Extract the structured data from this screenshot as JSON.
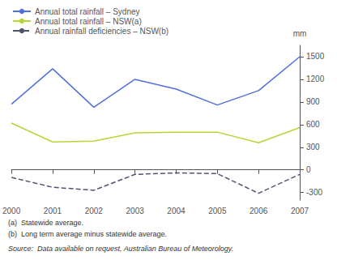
{
  "chart_data": {
    "type": "line",
    "x": [
      2000,
      2001,
      2002,
      2003,
      2004,
      2005,
      2006,
      2007
    ],
    "series": [
      {
        "name": "Annual total rainfall – Sydney",
        "values": [
          870,
          1340,
          830,
          1200,
          1070,
          860,
          1050,
          1500
        ],
        "line_style": "solid"
      },
      {
        "name": "Annual total rainfall – NSW(a)",
        "values": [
          620,
          370,
          380,
          490,
          500,
          500,
          360,
          560
        ],
        "line_style": "solid"
      },
      {
        "name": "Annual rainfall deficiencies – NSW(b)",
        "values": [
          -100,
          -230,
          -270,
          -60,
          -40,
          -50,
          -310,
          -60
        ],
        "line_style": "dashed"
      }
    ],
    "xlim": [
      2000,
      2007
    ],
    "xticks": [
      2000,
      2001,
      2002,
      2003,
      2004,
      2005,
      2006,
      2007
    ],
    "ylim": [
      -400,
      1650
    ],
    "yticks": [
      -300,
      0,
      300,
      600,
      900,
      1200,
      1500
    ],
    "ylabel": "mm",
    "annotations": [
      "(a)  Statewide average.",
      "(b)  Long term average minus statewide average."
    ],
    "source": "Source:  Data available on request, Australian Bureau of Meteorology.",
    "legend": "upper left",
    "grid": false
  }
}
